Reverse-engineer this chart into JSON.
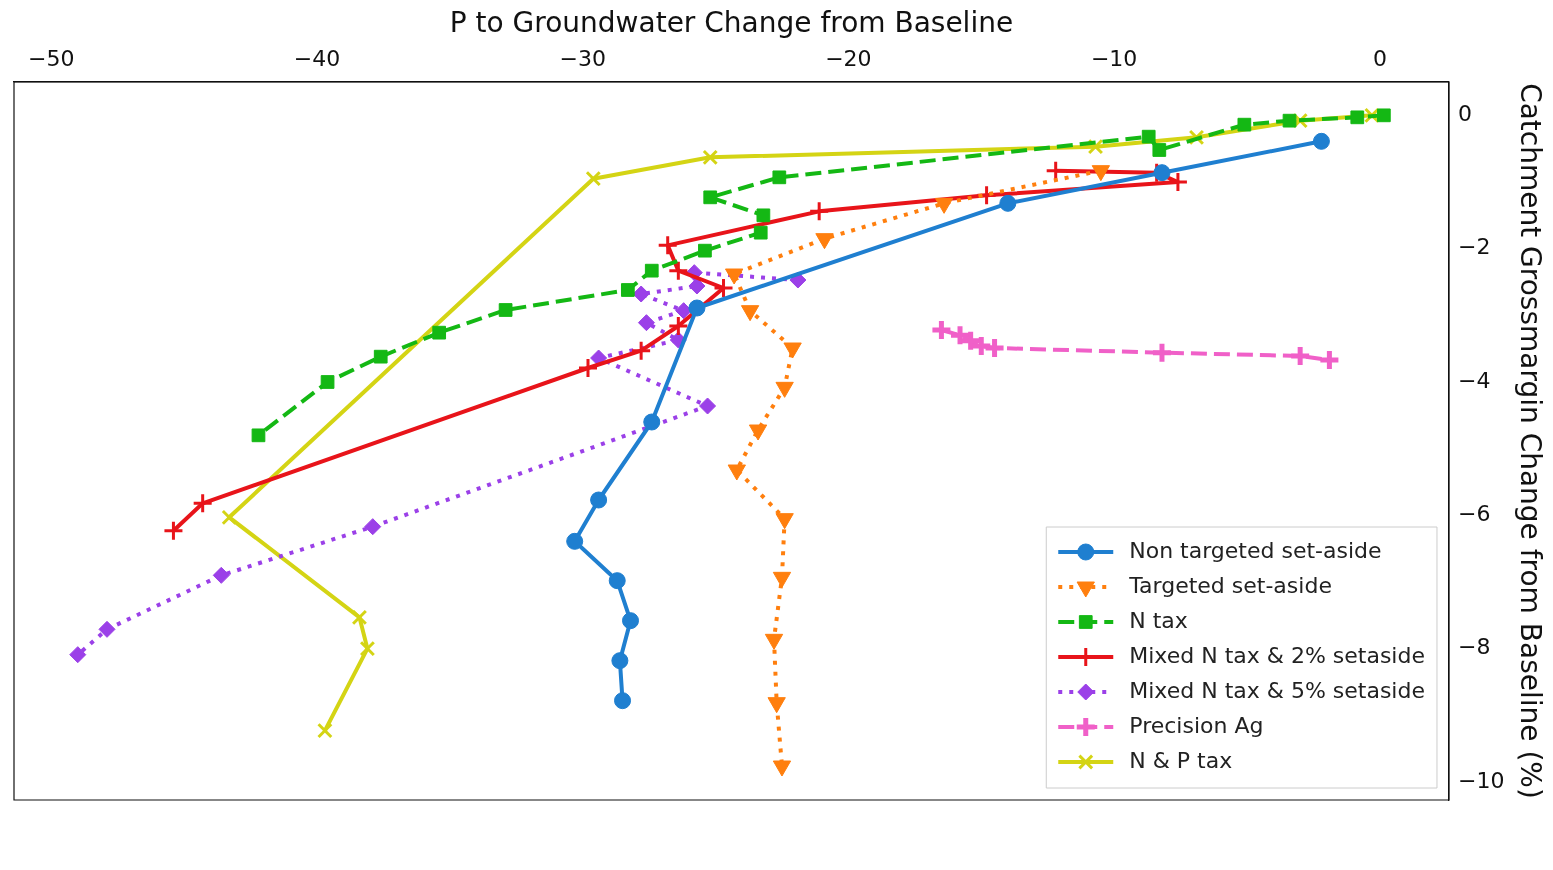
{
  "chart_data": {
    "type": "line",
    "xlabel": "P to Groundwater Change from Baseline",
    "ylabel": "Catchment Grossmargin Change from Baseline (%)",
    "xlim": [
      -51.4,
      2.6
    ],
    "ylim": [
      -10.27,
      0.5
    ],
    "xticks": [
      {
        "value": -50,
        "label": "−50"
      },
      {
        "value": -40,
        "label": "−40"
      },
      {
        "value": -30,
        "label": "−30"
      },
      {
        "value": -20,
        "label": "−20"
      },
      {
        "value": -10,
        "label": "−10"
      },
      0
    ],
    "yticks": [
      0,
      {
        "value": -2,
        "label": "−2"
      },
      {
        "value": -4,
        "label": "−4"
      },
      {
        "value": -6,
        "label": "−6"
      },
      {
        "value": -8,
        "label": "−8"
      },
      {
        "value": -10,
        "label": "−10"
      }
    ],
    "grid": false,
    "legend": "bottom right",
    "series": [
      {
        "name": "Non targeted set-aside",
        "color": "#1f7fd0",
        "marker": "circle",
        "line_style": "solid",
        "x": [
          -2.2,
          -8.2,
          -14.0,
          -25.7,
          -27.4,
          -29.4,
          -30.3,
          -28.7,
          -28.2,
          -28.6,
          -28.5
        ],
        "values": [
          -0.39,
          -0.86,
          -1.32,
          -2.89,
          -4.6,
          -5.77,
          -6.39,
          -6.98,
          -7.58,
          -8.18,
          -8.78
        ]
      },
      {
        "name": "Targeted set-aside",
        "color": "#ff7f0e",
        "marker": "triangle_down",
        "line_style": "dotted",
        "x": [
          -10.5,
          -16.4,
          -20.9,
          -24.3,
          -23.7,
          -22.1,
          -22.4,
          -23.4,
          -24.2,
          -22.4,
          -22.5,
          -22.8,
          -22.7,
          -22.5
        ],
        "values": [
          -0.83,
          -1.32,
          -1.85,
          -2.38,
          -2.93,
          -3.49,
          -4.08,
          -4.72,
          -5.32,
          -6.05,
          -6.93,
          -7.86,
          -8.81,
          -9.76
        ]
      },
      {
        "name": "N tax",
        "color": "#14b814",
        "marker": "square",
        "line_style": "dashed",
        "x": [
          0.15,
          -0.85,
          -3.4,
          -5.1,
          -8.3,
          -8.7,
          -22.6,
          -25.2,
          -23.2,
          -23.3,
          -25.4,
          -27.4,
          -28.3,
          -32.9,
          -35.4,
          -37.6,
          -39.6,
          -42.2
        ],
        "values": [
          0,
          -0.03,
          -0.08,
          -0.14,
          -0.52,
          -0.32,
          -0.93,
          -1.23,
          -1.5,
          -1.76,
          -2.03,
          -2.33,
          -2.62,
          -2.92,
          -3.26,
          -3.62,
          -4.0,
          -4.8
        ]
      },
      {
        "name": "Mixed N tax & 2% setaside",
        "color": "#e8141a",
        "marker": "cross",
        "line_style": "solid",
        "x": [
          -12.2,
          -8.4,
          -7.6,
          -14.8,
          -21.1,
          -26.8,
          -26.4,
          -24.7,
          -26.4,
          -27.8,
          -29.8,
          -44.3,
          -45.4
        ],
        "values": [
          -0.83,
          -0.86,
          -1.0,
          -1.2,
          -1.44,
          -1.95,
          -2.33,
          -2.59,
          -3.16,
          -3.53,
          -3.79,
          -5.82,
          -6.23
        ]
      },
      {
        "name": "Mixed N tax & 5% setaside",
        "color": "#9b40e8",
        "marker": "diamond",
        "line_style": "dotted",
        "x": [
          -21.9,
          -25.8,
          -25.7,
          -27.8,
          -26.2,
          -27.6,
          -26.4,
          -29.4,
          -25.3,
          -37.9,
          -43.6,
          -47.9,
          -49.0
        ],
        "values": [
          -2.47,
          -2.36,
          -2.56,
          -2.68,
          -2.93,
          -3.11,
          -3.37,
          -3.64,
          -4.36,
          -6.17,
          -6.9,
          -7.71,
          -8.09
        ]
      },
      {
        "name": "Precision Ag",
        "color": "#f060c8",
        "marker": "plus",
        "line_style": "dashed",
        "x": [
          -16.5,
          -15.8,
          -15.4,
          -15.0,
          -14.5,
          -8.2,
          -3.0,
          -1.9
        ],
        "values": [
          -3.22,
          -3.3,
          -3.38,
          -3.46,
          -3.49,
          -3.56,
          -3.61,
          -3.67
        ]
      },
      {
        "name": "N & P tax",
        "color": "#d4d414",
        "marker": "x",
        "line_style": "solid",
        "x": [
          -0.3,
          -3.0,
          -6.9,
          -10.7,
          -25.2,
          -29.6,
          -43.3,
          -38.4,
          -38.1,
          -39.7
        ],
        "values": [
          0,
          -0.08,
          -0.33,
          -0.47,
          -0.63,
          -0.95,
          -6.03,
          -7.53,
          -8.0,
          -9.23
        ]
      }
    ]
  }
}
